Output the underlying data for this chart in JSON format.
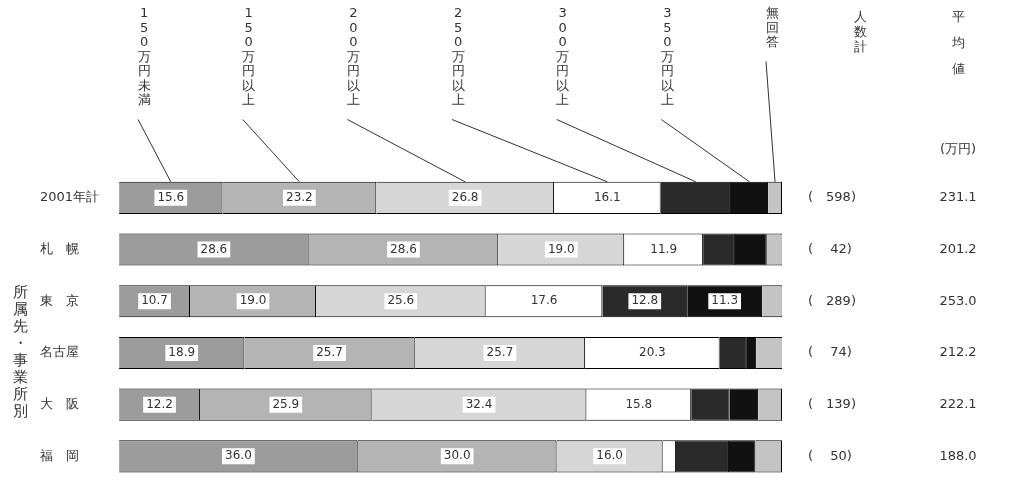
{
  "chart_data": {
    "type": "bar",
    "orientation": "horizontal",
    "stacked": true,
    "ylabel": "所属先・事業所別",
    "categories": [
      "2001年計",
      "札　幌",
      "東　京",
      "名古屋",
      "大　阪",
      "福　岡"
    ],
    "series": [
      {
        "name": "150万円未満",
        "color": "#9c9c9c",
        "values": [
          15.6,
          28.6,
          10.7,
          18.9,
          12.2,
          36.0
        ],
        "value_labels": [
          "15.6",
          "28.6",
          "10.7",
          "18.9",
          "12.2",
          "36.0"
        ]
      },
      {
        "name": "150万円以上",
        "color": "#b4b4b4",
        "values": [
          23.2,
          28.6,
          19.0,
          25.7,
          25.9,
          30.0
        ],
        "value_labels": [
          "23.2",
          "28.6",
          "19.0",
          "25.7",
          "25.9",
          "30.0"
        ]
      },
      {
        "name": "200万円以上",
        "color": "#d6d6d6",
        "values": [
          26.8,
          19.0,
          25.6,
          25.7,
          32.4,
          16.0
        ],
        "value_labels": [
          "26.8",
          "19.0",
          "25.6",
          "25.7",
          "32.4",
          "16.0"
        ]
      },
      {
        "name": "250万円以上",
        "color": "#ffffff",
        "values": [
          16.1,
          11.9,
          17.6,
          20.3,
          15.8,
          2.0
        ],
        "value_labels": [
          "16.1",
          "11.9",
          "17.6",
          "20.3",
          "15.8",
          null
        ]
      },
      {
        "name": "300万円以上",
        "color": "#2a2a2a",
        "values": [
          10.6,
          4.8,
          12.8,
          4.1,
          5.8,
          8.0
        ],
        "value_labels": [
          null,
          null,
          "12.8",
          null,
          null,
          null
        ]
      },
      {
        "name": "350万円以上",
        "color": "#111111",
        "values": [
          5.6,
          4.8,
          11.3,
          1.4,
          4.3,
          4.0
        ],
        "value_labels": [
          null,
          null,
          "11.3",
          null,
          null,
          null
        ]
      },
      {
        "name": "無回答",
        "color": "#c4c4c4",
        "values": [
          2.1,
          2.4,
          3.1,
          4.1,
          3.6,
          4.0
        ],
        "value_labels": [
          null,
          null,
          null,
          null,
          null,
          null
        ]
      }
    ],
    "xlim": [
      0,
      100
    ],
    "tick_labels": "y",
    "legend": "top",
    "annotations": [
      "人数計",
      "平均値",
      "(万円)",
      "(　598)",
      "231.1",
      "(　 42)",
      "201.2",
      "(　289)",
      "253.0",
      "(　 74)",
      "212.2",
      "(　139)",
      "222.1",
      "(　 50)",
      "188.0"
    ]
  }
}
